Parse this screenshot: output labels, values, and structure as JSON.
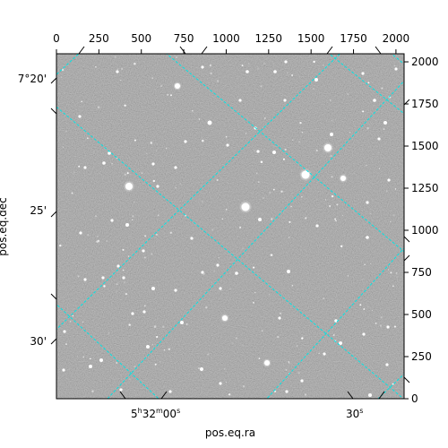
{
  "plot": {
    "x_axis_title": "pos.eq.ra",
    "y_axis_title": "pos.eq.dec",
    "top_pixel_ticks": [
      "0",
      "250",
      "500",
      "750",
      "1000",
      "1250",
      "1500",
      "1750",
      "2000"
    ],
    "right_pixel_ticks": [
      "0",
      "250",
      "500",
      "750",
      "1000",
      "1250",
      "1500",
      "1750",
      "2000"
    ],
    "ra_ticks": [
      {
        "h": "5",
        "m": "32",
        "s": "00"
      },
      {
        "s": "30"
      }
    ],
    "dec_ticks": [
      "7°20'",
      "25'",
      "30'"
    ],
    "grid_color": "#00e5e5"
  }
}
